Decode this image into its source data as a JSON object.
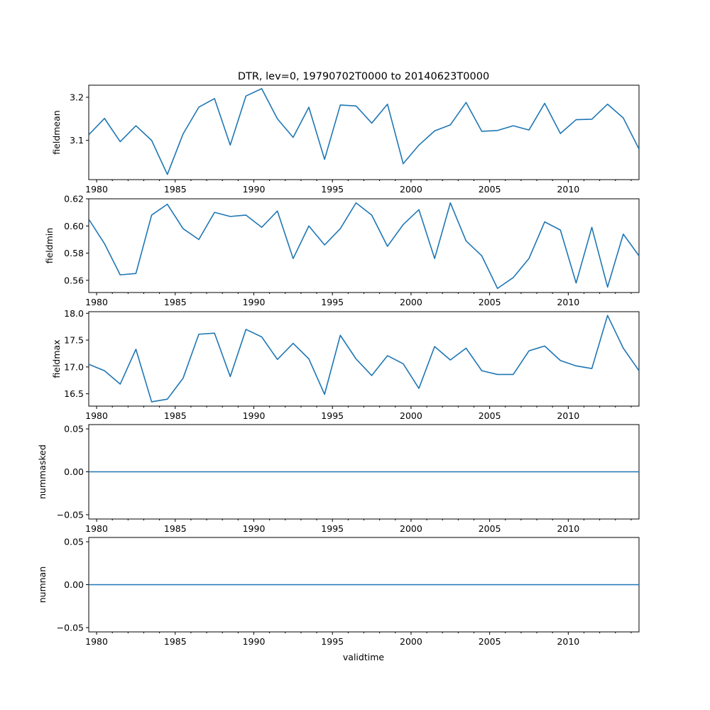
{
  "chart_data": {
    "type": "line",
    "title": "DTR, lev=0, 19790702T0000 to 20140623T0000",
    "xlabel": "validtime",
    "xlim": [
      1979.5,
      2014.5
    ],
    "x": [
      1979.5,
      1980.5,
      1981.5,
      1982.5,
      1983.5,
      1984.5,
      1985.5,
      1986.5,
      1987.5,
      1988.5,
      1989.5,
      1990.5,
      1991.5,
      1992.5,
      1993.5,
      1994.5,
      1995.5,
      1996.5,
      1997.5,
      1998.5,
      1999.5,
      2000.5,
      2001.5,
      2002.5,
      2003.5,
      2004.5,
      2005.5,
      2006.5,
      2007.5,
      2008.5,
      2009.5,
      2010.5,
      2011.5,
      2012.5,
      2013.5,
      2014.5
    ],
    "xticks": [
      1980,
      1985,
      1990,
      1995,
      2000,
      2005,
      2010
    ],
    "xtick_labels": [
      "1980",
      "1985",
      "1990",
      "1995",
      "2000",
      "2005",
      "2010"
    ],
    "panels": [
      {
        "ylabel": "fieldmean",
        "ylim": [
          3.009,
          3.228
        ],
        "yticks": [
          3.1,
          3.2
        ],
        "ytick_labels": [
          "3.1",
          "3.2"
        ],
        "values": [
          3.113,
          3.151,
          3.097,
          3.134,
          3.1,
          3.021,
          3.115,
          3.177,
          3.197,
          3.089,
          3.203,
          3.22,
          3.15,
          3.107,
          3.177,
          3.056,
          3.182,
          3.18,
          3.14,
          3.184,
          3.046,
          3.089,
          3.122,
          3.136,
          3.188,
          3.121,
          3.123,
          3.134,
          3.124,
          3.186,
          3.116,
          3.148,
          3.149,
          3.184,
          3.152,
          3.08
        ]
      },
      {
        "ylabel": "fieldmin",
        "ylim": [
          0.551,
          0.62
        ],
        "yticks": [
          0.56,
          0.58,
          0.6,
          0.62
        ],
        "ytick_labels": [
          "0.56",
          "0.58",
          "0.60",
          "0.62"
        ],
        "values": [
          0.605,
          0.587,
          0.564,
          0.565,
          0.608,
          0.616,
          0.598,
          0.59,
          0.61,
          0.607,
          0.608,
          0.599,
          0.611,
          0.576,
          0.6,
          0.586,
          0.598,
          0.617,
          0.608,
          0.585,
          0.601,
          0.612,
          0.576,
          0.617,
          0.589,
          0.578,
          0.554,
          0.562,
          0.576,
          0.603,
          0.597,
          0.558,
          0.599,
          0.555,
          0.594,
          0.578
        ]
      },
      {
        "ylabel": "fieldmax",
        "ylim": [
          16.27,
          18.03
        ],
        "yticks": [
          16.5,
          17.0,
          17.5,
          18.0
        ],
        "ytick_labels": [
          "16.5",
          "17.0",
          "17.5",
          "18.0"
        ],
        "values": [
          17.05,
          16.93,
          16.68,
          17.33,
          16.35,
          16.4,
          16.79,
          17.61,
          17.63,
          16.82,
          17.7,
          17.56,
          17.14,
          17.44,
          17.15,
          16.49,
          17.59,
          17.15,
          16.84,
          17.21,
          17.06,
          16.6,
          17.38,
          17.13,
          17.35,
          16.93,
          16.86,
          16.86,
          17.3,
          17.39,
          17.12,
          17.02,
          16.97,
          17.96,
          17.35,
          16.93
        ]
      },
      {
        "ylabel": "nummasked",
        "ylim": [
          -0.055,
          0.055
        ],
        "yticks": [
          -0.05,
          0.0,
          0.05
        ],
        "ytick_labels": [
          "−0.05",
          "0.00",
          "0.05"
        ],
        "values": [
          0,
          0,
          0,
          0,
          0,
          0,
          0,
          0,
          0,
          0,
          0,
          0,
          0,
          0,
          0,
          0,
          0,
          0,
          0,
          0,
          0,
          0,
          0,
          0,
          0,
          0,
          0,
          0,
          0,
          0,
          0,
          0,
          0,
          0,
          0,
          0
        ]
      },
      {
        "ylabel": "numnan",
        "ylim": [
          -0.055,
          0.055
        ],
        "yticks": [
          -0.05,
          0.0,
          0.05
        ],
        "ytick_labels": [
          "−0.05",
          "0.00",
          "0.05"
        ],
        "values": [
          0,
          0,
          0,
          0,
          0,
          0,
          0,
          0,
          0,
          0,
          0,
          0,
          0,
          0,
          0,
          0,
          0,
          0,
          0,
          0,
          0,
          0,
          0,
          0,
          0,
          0,
          0,
          0,
          0,
          0,
          0,
          0,
          0,
          0,
          0,
          0
        ]
      }
    ],
    "colors": {
      "line": "#1f77b4",
      "axes": "#000000"
    }
  }
}
